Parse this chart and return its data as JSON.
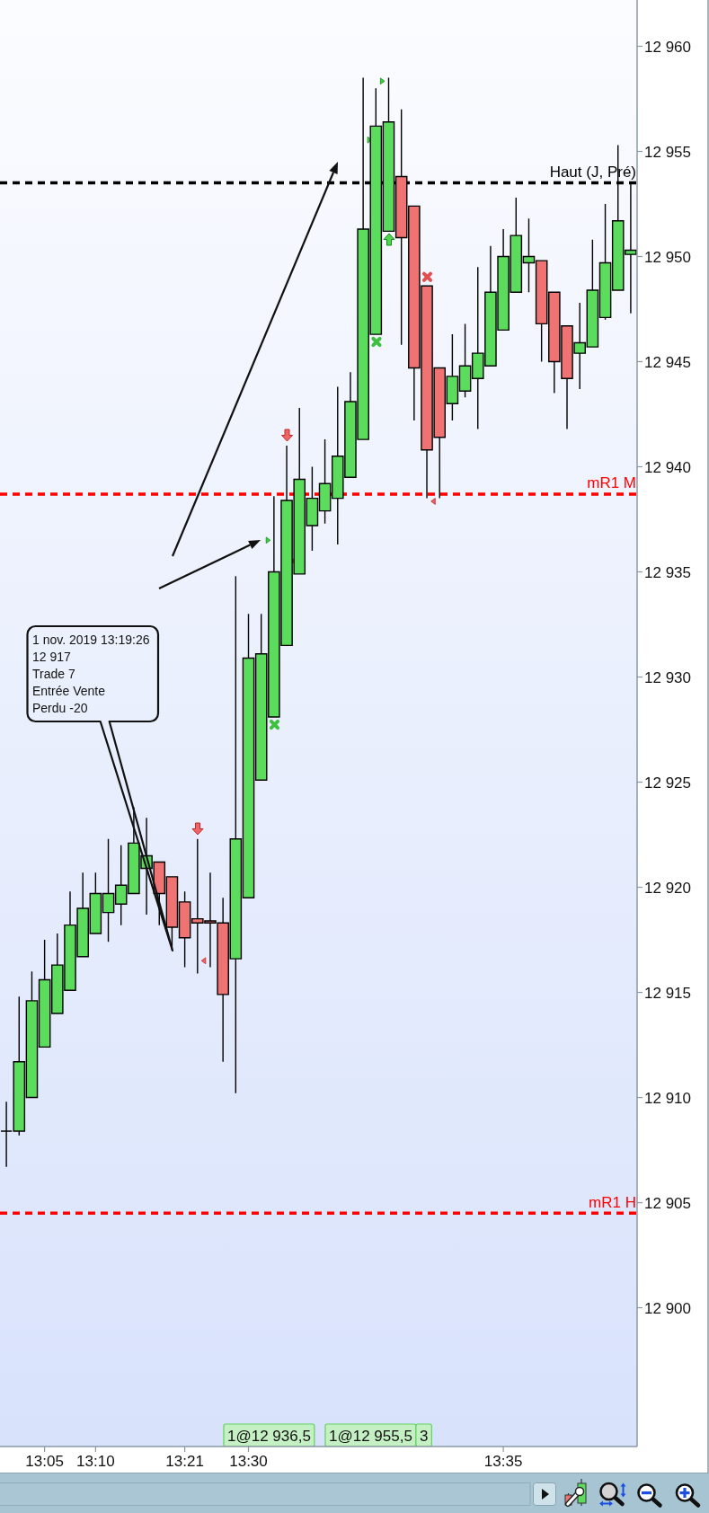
{
  "chart_data": {
    "type": "candlestick",
    "categories": [
      null,
      null,
      null,
      "13:05",
      null,
      null,
      null,
      "13:10",
      null,
      null,
      null,
      null,
      null,
      null,
      "13:21",
      null,
      null,
      null,
      null,
      "13:30",
      null,
      null,
      null,
      null,
      null,
      null,
      null,
      null,
      null,
      null,
      null,
      null,
      null,
      null,
      null,
      null,
      null,
      null,
      null,
      "13:35",
      null,
      null,
      null,
      null,
      null,
      null,
      null,
      null,
      null,
      null
    ],
    "ohlc": [
      [
        12908.4,
        12909.8,
        12906.7,
        12908.4
      ],
      [
        12908.4,
        12914.8,
        12908.2,
        12911.7
      ],
      [
        12910.0,
        12916.0,
        12910.0,
        12914.6
      ],
      [
        12912.4,
        12917.5,
        12912.4,
        12915.6
      ],
      [
        12914.0,
        12917.8,
        12914.0,
        12916.3
      ],
      [
        12915.1,
        12919.8,
        12915.1,
        12918.2
      ],
      [
        12916.7,
        12920.7,
        12916.7,
        12919.0
      ],
      [
        12917.8,
        12920.7,
        12917.8,
        12919.7
      ],
      [
        12918.8,
        12922.3,
        12917.4,
        12919.7
      ],
      [
        12919.2,
        12922.0,
        12918.2,
        12920.1
      ],
      [
        12919.7,
        12923.8,
        12919.7,
        12922.1
      ],
      [
        12920.9,
        12923.3,
        12918.7,
        12921.5
      ],
      [
        12921.2,
        12921.2,
        12918.2,
        12919.7
      ],
      [
        12920.5,
        12920.5,
        12917.0,
        12918.1
      ],
      [
        12919.3,
        12919.8,
        12916.2,
        12917.6
      ],
      [
        12918.5,
        12922.3,
        12915.9,
        12918.3
      ],
      [
        12918.4,
        12920.7,
        12916.2,
        12918.3
      ],
      [
        12918.3,
        12919.5,
        12911.7,
        12914.9
      ],
      [
        12916.6,
        12934.8,
        12910.2,
        12922.3
      ],
      [
        12919.5,
        12933.0,
        12919.5,
        12930.9
      ],
      [
        12925.1,
        12933.0,
        12925.1,
        12931.1
      ],
      [
        12928.1,
        12938.6,
        12928.1,
        12935.0
      ],
      [
        12931.5,
        12941.0,
        12931.5,
        12938.4
      ],
      [
        12934.9,
        12942.8,
        12934.9,
        12939.4
      ],
      [
        12937.2,
        12940.0,
        12936.0,
        12938.5
      ],
      [
        12937.9,
        12941.3,
        12937.3,
        12939.2
      ],
      [
        12938.5,
        12943.8,
        12936.3,
        12940.5
      ],
      [
        12939.5,
        12944.5,
        12939.5,
        12943.1
      ],
      [
        12941.3,
        12958.5,
        12941.3,
        12951.3
      ],
      [
        12946.3,
        12958.0,
        12946.3,
        12956.2
      ],
      [
        12951.2,
        12958.5,
        12951.2,
        12956.4
      ],
      [
        12953.8,
        12957.0,
        12945.8,
        12950.9
      ],
      [
        12952.4,
        12952.4,
        12942.2,
        12944.7
      ],
      [
        12948.6,
        12948.6,
        12938.5,
        12940.8
      ],
      [
        12944.7,
        12944.7,
        12938.5,
        12941.4
      ],
      [
        12943.0,
        12946.3,
        12942.2,
        12944.3
      ],
      [
        12943.6,
        12946.8,
        12943.3,
        12944.8
      ],
      [
        12944.2,
        12949.5,
        12941.8,
        12945.4
      ],
      [
        12944.8,
        12950.5,
        12944.8,
        12948.3
      ],
      [
        12946.5,
        12951.3,
        12946.5,
        12950.0
      ],
      [
        12948.3,
        12952.8,
        12948.3,
        12951.0
      ],
      [
        12949.7,
        12951.8,
        12948.3,
        12950.0
      ],
      [
        12949.8,
        12949.8,
        12945.0,
        12946.8
      ],
      [
        12948.3,
        12948.3,
        12943.5,
        12945.0
      ],
      [
        12946.7,
        12946.7,
        12941.8,
        12944.2
      ],
      [
        12945.4,
        12947.8,
        12943.7,
        12945.9
      ],
      [
        12945.7,
        12950.8,
        12945.7,
        12948.4
      ],
      [
        12947.1,
        12952.5,
        12947.0,
        12949.7
      ],
      [
        12948.4,
        12955.3,
        12948.4,
        12951.7
      ],
      [
        12950.1,
        12953.5,
        12947.3,
        12950.3
      ]
    ],
    "colors": [
      "#000000",
      "#5cdc5c",
      "#5cdc5c",
      "#5cdc5c",
      "#5cdc5c",
      "#5cdc5c",
      "#5cdc5c",
      "#5cdc5c",
      "#5cdc5c",
      "#5cdc5c",
      "#5cdc5c",
      "#5cdc5c",
      "#ef7373",
      "#ef7373",
      "#ef7373",
      "#ef7373",
      "#ef7373",
      "#ef7373",
      "#5cdc5c",
      "#5cdc5c",
      "#5cdc5c",
      "#5cdc5c",
      "#5cdc5c",
      "#5cdc5c",
      "#5cdc5c",
      "#5cdc5c",
      "#5cdc5c",
      "#5cdc5c",
      "#5cdc5c",
      "#5cdc5c",
      "#5cdc5c",
      "#ef7373",
      "#ef7373",
      "#ef7373",
      "#ef7373",
      "#5cdc5c",
      "#5cdc5c",
      "#5cdc5c",
      "#5cdc5c",
      "#5cdc5c",
      "#5cdc5c",
      "#5cdc5c",
      "#ef7373",
      "#ef7373",
      "#ef7373",
      "#5cdc5c",
      "#5cdc5c",
      "#5cdc5c",
      "#5cdc5c",
      "#5cdc5c"
    ],
    "ylim": [
      12893.4,
      12962.2
    ],
    "yticks": [
      {
        "value": 12900,
        "label": "12 900"
      },
      {
        "value": 12905,
        "label": "12 905"
      },
      {
        "value": 12910,
        "label": "12 910"
      },
      {
        "value": 12915,
        "label": "12 915"
      },
      {
        "value": 12920,
        "label": "12 920"
      },
      {
        "value": 12925,
        "label": "12 925"
      },
      {
        "value": 12930,
        "label": "12 930"
      },
      {
        "value": 12935,
        "label": "12 935"
      },
      {
        "value": 12940,
        "label": "12 940"
      },
      {
        "value": 12945,
        "label": "12 945"
      },
      {
        "value": 12950,
        "label": "12 950"
      },
      {
        "value": 12955,
        "label": "12 955"
      },
      {
        "value": 12960,
        "label": "12 960"
      }
    ],
    "ref_lines": [
      {
        "axis": "y",
        "value": 12953.5,
        "label": "Haut (J, Pré)",
        "color": "#000000",
        "line_style": "dashed"
      },
      {
        "axis": "y",
        "value": 12938.7,
        "label": "mR1 M",
        "color": "#ff0000",
        "line_style": "dashed"
      },
      {
        "axis": "y",
        "value": 12904.5,
        "label": "mR1 H",
        "color": "#ff0000",
        "line_style": "dashed"
      }
    ],
    "annotations": [
      "1 nov. 2019 13:19:26\n12 917\nTrade 7\nEntrée Vente\nPerdu -20",
      "1@12 936,5",
      "1@12 955,5",
      "3"
    ]
  }
}
